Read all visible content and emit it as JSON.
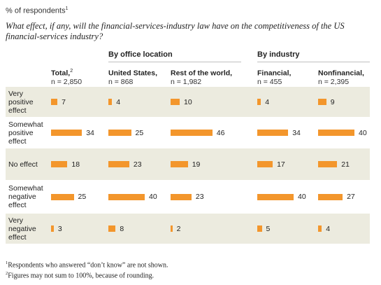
{
  "unit_label": "% of respondents",
  "unit_footnote": "1",
  "question": "What effect, if any, will the financial-services-industry law have on the competitiveness of the US financial-services industry?",
  "groups": [
    {
      "label": "By office location"
    },
    {
      "label": "By industry"
    }
  ],
  "columns": [
    {
      "title": "Total,",
      "footnote": "2",
      "n": "n = 2,850"
    },
    {
      "title": "United States,",
      "footnote": "",
      "n": "n = 868"
    },
    {
      "title": "Rest of the world,",
      "footnote": "",
      "n": "n = 1,982"
    },
    {
      "title": "Financial,",
      "footnote": "",
      "n": "n = 455"
    },
    {
      "title": "Nonfinancial,",
      "footnote": "",
      "n": "n = 2,395"
    }
  ],
  "footnotes": [
    {
      "mark": "1",
      "text": "Respondents who answered “don’t know” are not shown."
    },
    {
      "mark": "2",
      "text": "Figures may not sum to 100%, because of rounding."
    }
  ],
  "colors": {
    "bar": "#f3962c",
    "shade": "#ecebdf"
  },
  "chart_data": {
    "type": "bar",
    "orientation": "horizontal",
    "categories": [
      "Very positive effect",
      "Somewhat positive effect",
      "No effect",
      "Somewhat negative effect",
      "Very negative effect"
    ],
    "series": [
      {
        "name": "Total",
        "values": [
          7,
          34,
          18,
          25,
          3
        ]
      },
      {
        "name": "United States",
        "values": [
          4,
          25,
          23,
          40,
          8
        ]
      },
      {
        "name": "Rest of the world",
        "values": [
          10,
          46,
          19,
          23,
          2
        ]
      },
      {
        "name": "Financial",
        "values": [
          4,
          34,
          17,
          40,
          5
        ]
      },
      {
        "name": "Nonfinancial",
        "values": [
          9,
          40,
          21,
          27,
          4
        ]
      }
    ]
  }
}
